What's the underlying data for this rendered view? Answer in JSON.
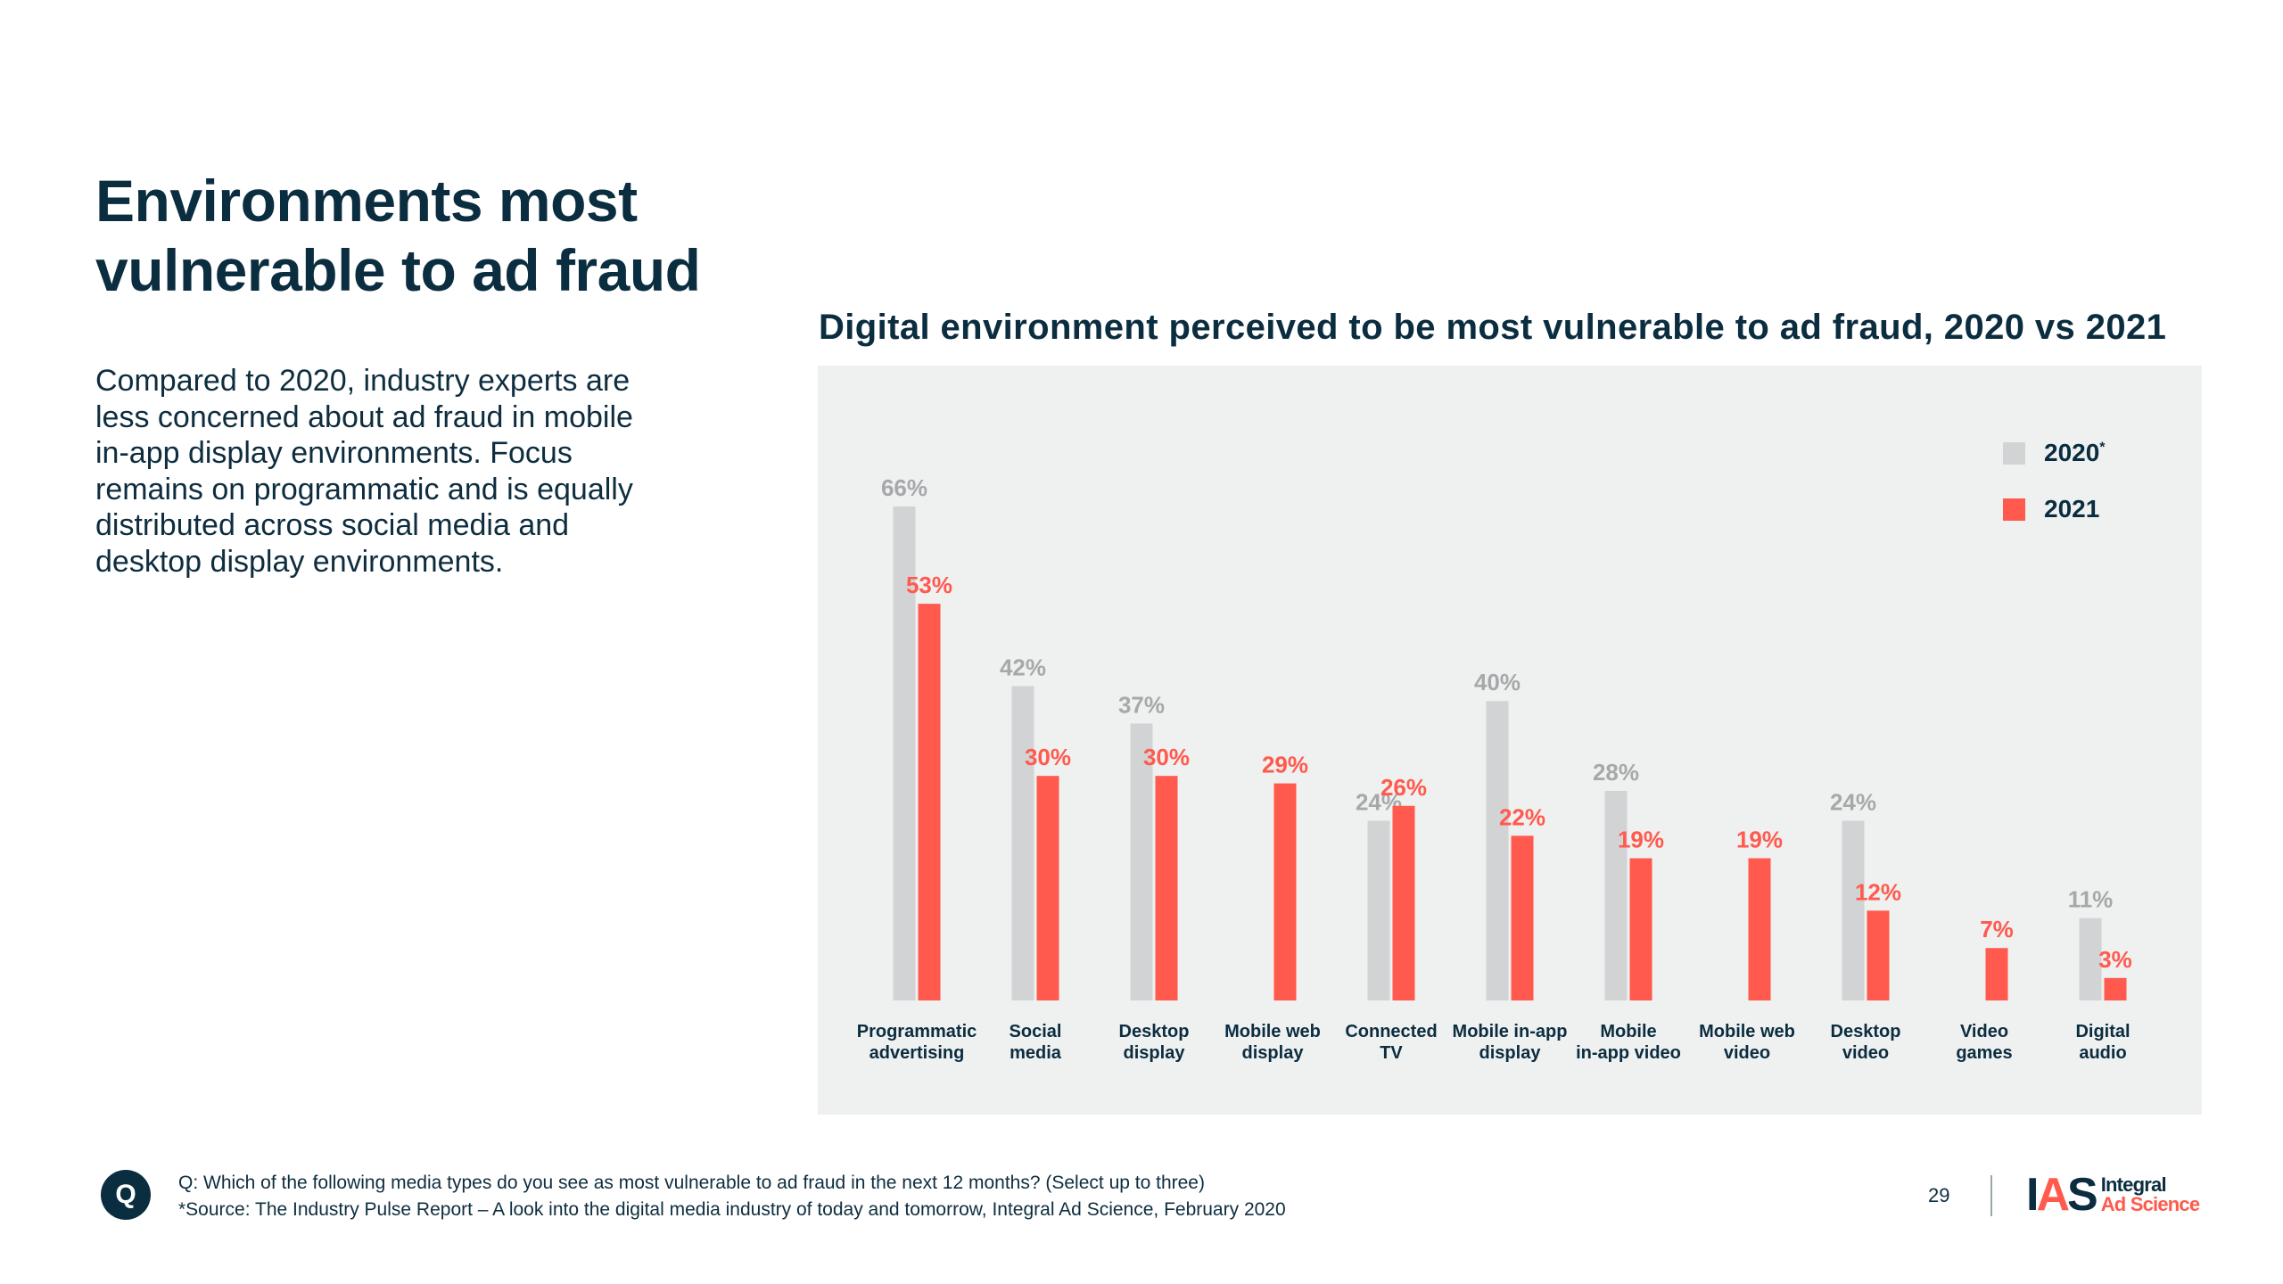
{
  "page": {
    "title_lines": [
      "Environments most",
      "vulnerable to ad fraud"
    ],
    "body_text": "Compared to 2020, industry experts are less concerned about ad fraud in mobile in-app display environments. Focus remains on programmatic and is equally distributed across social media and desktop display environments.",
    "chart_heading": "Digital environment perceived to be most vulnerable to ad fraud, 2020 vs 2021"
  },
  "legend": [
    {
      "label": "2020",
      "marker": "*",
      "color": "#d2d3d4"
    },
    {
      "label": "2021",
      "marker": "",
      "color": "#ff5a4d"
    }
  ],
  "colors": {
    "series_2020": "#d2d3d4",
    "series_2021": "#ff5a4d",
    "label_2020": "#a6a8aa",
    "label_2021": "#ff5a4d",
    "category_label": "#0b2d40",
    "panel_bg": "#eff0f0"
  },
  "chart_data": {
    "type": "bar",
    "title": "Digital environment perceived to be most vulnerable to ad fraud, 2020 vs 2021",
    "xlabel": "",
    "ylabel": "",
    "ylim": [
      0,
      70
    ],
    "grid": false,
    "legend_position": "top-right",
    "categories": [
      [
        "Programmatic",
        "advertising"
      ],
      [
        "Social",
        "media"
      ],
      [
        "Desktop",
        "display"
      ],
      [
        "Mobile web",
        "display"
      ],
      [
        "Connected",
        "TV"
      ],
      [
        "Mobile in-app",
        "display"
      ],
      [
        "Mobile",
        "in-app video"
      ],
      [
        "Mobile web",
        "video"
      ],
      [
        "Desktop",
        "video"
      ],
      [
        "Video",
        "games"
      ],
      [
        "Digital",
        "audio"
      ]
    ],
    "series": [
      {
        "name": "2020*",
        "values": [
          66,
          42,
          37,
          null,
          24,
          40,
          28,
          null,
          24,
          null,
          11
        ]
      },
      {
        "name": "2021",
        "values": [
          53,
          30,
          30,
          29,
          26,
          22,
          19,
          19,
          12,
          7,
          3
        ]
      }
    ],
    "value_suffix": "%"
  },
  "footer": {
    "q_badge": "Q",
    "question": "Q: Which of the following media types do you see as most vulnerable to ad fraud in the next 12 months? (Select up to three)",
    "source": "*Source: The Industry Pulse Report – A look into the digital media industry of today and tomorrow, Integral Ad Science, February 2020",
    "page_number": "29"
  },
  "logo": {
    "letters": [
      "I",
      "A",
      "S"
    ],
    "word_1": "Integral",
    "word_2": "Ad Science"
  }
}
